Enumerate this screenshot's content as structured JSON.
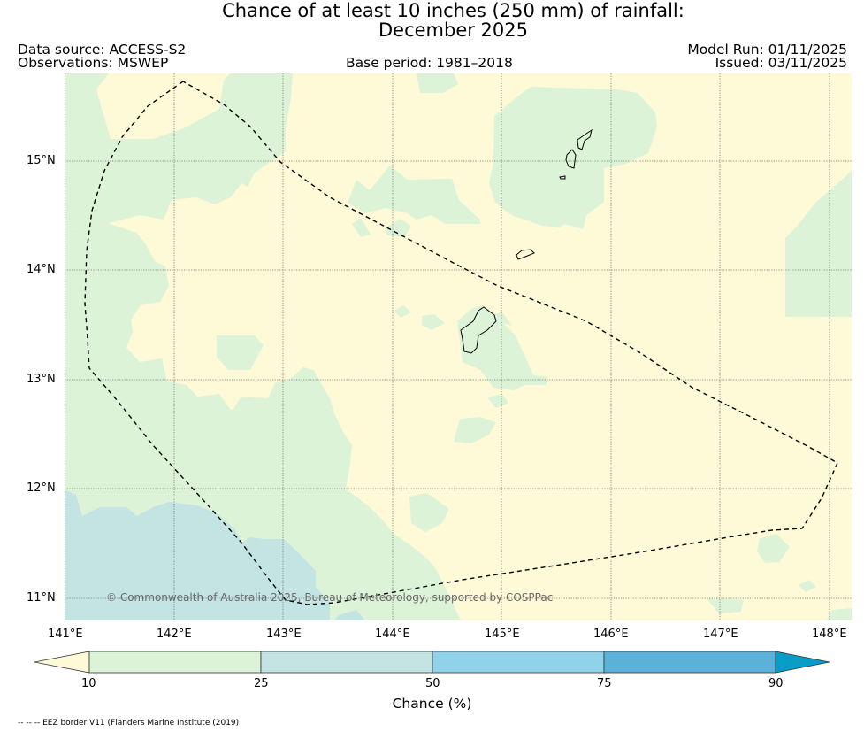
{
  "title": {
    "line1": "Chance of at least 10 inches (250  mm) of rainfall:",
    "line2": "December 2025"
  },
  "meta": {
    "data_source": "Data source: ACCESS-S2",
    "observations": "Observations: MSWEP",
    "base_period": "Base period: 1981–2018",
    "model_run": "Model Run: 01/11/2025",
    "issued": "Issued: 03/11/2025"
  },
  "map": {
    "copyright": "© Commonwealth of Australia 2025, Bureau of Meteorology, supported by COSPPac",
    "x_ticks": [
      "141°E",
      "142°E",
      "143°E",
      "144°E",
      "145°E",
      "146°E",
      "147°E",
      "148°E"
    ],
    "y_ticks": [
      "15°N",
      "14°N",
      "13°N",
      "12°N",
      "11°N"
    ],
    "lon_range": [
      140.98,
      148.2
    ],
    "lat_range": [
      10.8,
      15.8
    ],
    "colors": {
      "lt10": "#fef9d6",
      "c10_25": "#ddf3d8",
      "c25_50": "#c3e4e2",
      "c50_75": "#8fd2ea",
      "c75_90": "#5ab2d8",
      "gt90": "#089cc9"
    }
  },
  "colorbar": {
    "ticks": [
      "10",
      "25",
      "50",
      "75",
      "90"
    ],
    "label": "Chance (%)"
  },
  "eez_note": "-- -- -- EEZ border V11 (Flanders Marine Institute (2019)"
}
